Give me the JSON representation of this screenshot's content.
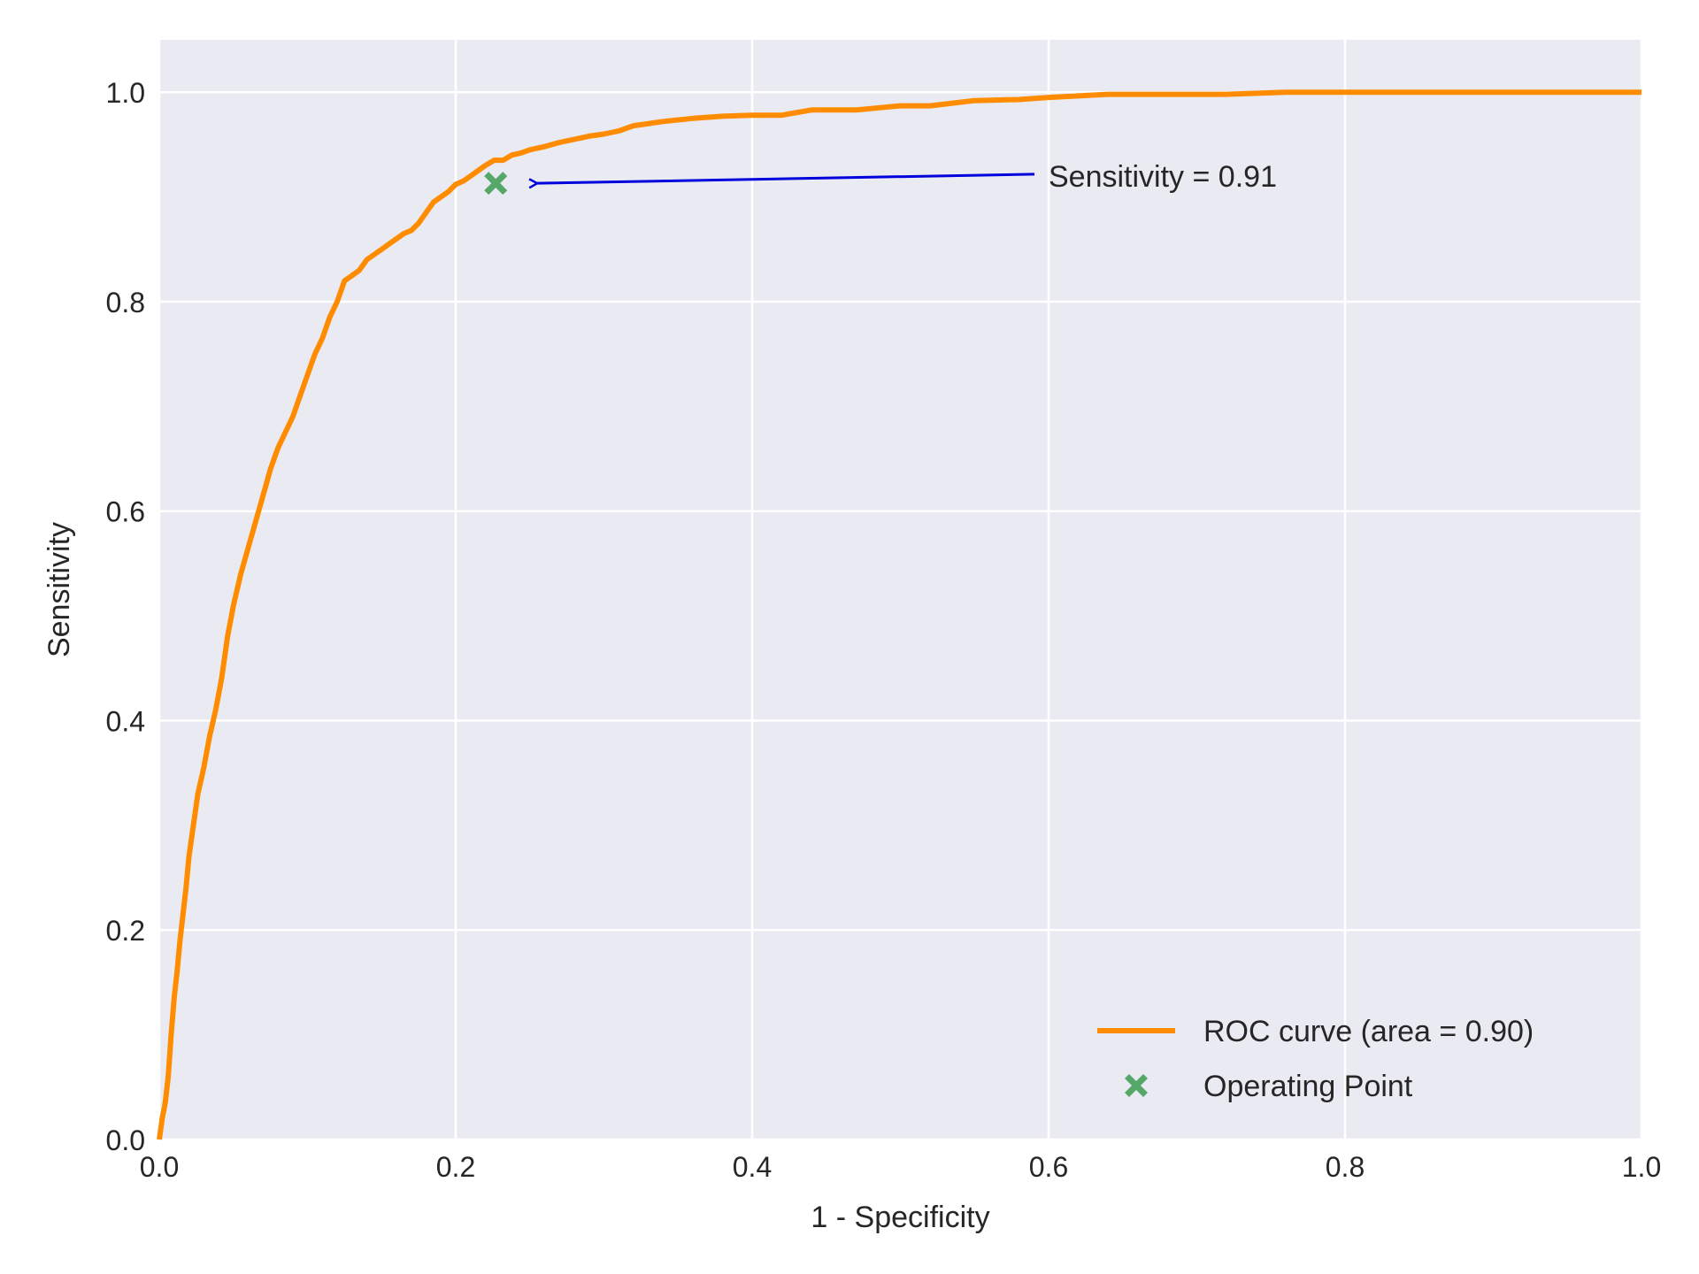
{
  "chart_data": {
    "type": "line",
    "xlabel": "1 - Specificity",
    "ylabel": "Sensitivity",
    "xlim": [
      0.0,
      1.0
    ],
    "ylim": [
      0.0,
      1.05
    ],
    "x_ticks": [
      "0.0",
      "0.2",
      "0.4",
      "0.6",
      "0.8",
      "1.0"
    ],
    "y_ticks": [
      "0.0",
      "0.2",
      "0.4",
      "0.6",
      "0.8",
      "1.0"
    ],
    "grid": true,
    "legend_position": "lower-right",
    "series": [
      {
        "name": "ROC curve (area = 0.90)",
        "color": "#ff8c00",
        "x": [
          0.0,
          0.002,
          0.004,
          0.006,
          0.008,
          0.01,
          0.012,
          0.014,
          0.016,
          0.018,
          0.02,
          0.023,
          0.026,
          0.03,
          0.034,
          0.038,
          0.042,
          0.046,
          0.05,
          0.055,
          0.06,
          0.065,
          0.07,
          0.075,
          0.08,
          0.085,
          0.09,
          0.095,
          0.1,
          0.105,
          0.11,
          0.115,
          0.12,
          0.125,
          0.13,
          0.135,
          0.14,
          0.145,
          0.15,
          0.155,
          0.16,
          0.165,
          0.17,
          0.175,
          0.18,
          0.185,
          0.19,
          0.195,
          0.2,
          0.205,
          0.21,
          0.215,
          0.22,
          0.226,
          0.232,
          0.238,
          0.244,
          0.25,
          0.26,
          0.27,
          0.28,
          0.29,
          0.3,
          0.31,
          0.32,
          0.34,
          0.36,
          0.38,
          0.4,
          0.42,
          0.44,
          0.46,
          0.47,
          0.5,
          0.52,
          0.55,
          0.58,
          0.6,
          0.64,
          0.72,
          0.76,
          0.8,
          0.9,
          1.0
        ],
        "y": [
          0.0,
          0.02,
          0.035,
          0.06,
          0.1,
          0.135,
          0.16,
          0.19,
          0.215,
          0.24,
          0.27,
          0.3,
          0.33,
          0.355,
          0.385,
          0.41,
          0.44,
          0.48,
          0.51,
          0.54,
          0.565,
          0.59,
          0.615,
          0.64,
          0.66,
          0.675,
          0.69,
          0.71,
          0.73,
          0.75,
          0.765,
          0.785,
          0.8,
          0.82,
          0.825,
          0.83,
          0.84,
          0.845,
          0.85,
          0.855,
          0.86,
          0.865,
          0.868,
          0.875,
          0.885,
          0.895,
          0.9,
          0.905,
          0.912,
          0.915,
          0.92,
          0.925,
          0.93,
          0.935,
          0.935,
          0.94,
          0.942,
          0.945,
          0.948,
          0.952,
          0.955,
          0.958,
          0.96,
          0.963,
          0.968,
          0.972,
          0.975,
          0.977,
          0.978,
          0.978,
          0.983,
          0.983,
          0.983,
          0.987,
          0.987,
          0.992,
          0.993,
          0.995,
          0.998,
          0.998,
          1.0,
          1.0,
          1.0,
          1.0
        ]
      },
      {
        "name": "Operating Point",
        "color": "#55a868",
        "marker": "X",
        "x": [
          0.227
        ],
        "y": [
          0.913
        ]
      }
    ],
    "annotations": [
      {
        "text": "Sensitivity = 0.91",
        "point": [
          0.255,
          0.913
        ],
        "text_at": [
          0.6,
          0.92
        ],
        "arrow_color": "#0000dd"
      }
    ],
    "colors": {
      "plot_background": "#eaeaf2",
      "grid": "#ffffff",
      "text": "#262626"
    }
  }
}
